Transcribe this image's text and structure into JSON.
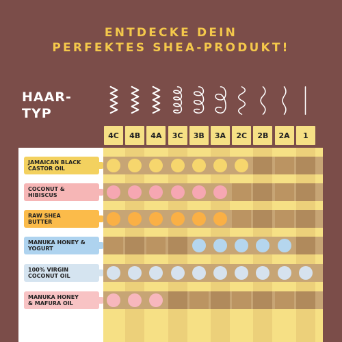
{
  "title": {
    "line1": "ENTDECKE DEIN",
    "line2": "PERFEKTES SHEA-PRODUKT!"
  },
  "axis_label": {
    "line1": "HAAR-",
    "line2": "TYP"
  },
  "hair_types": [
    "4C",
    "4B",
    "4A",
    "3C",
    "3B",
    "3A",
    "2C",
    "2B",
    "2A",
    "1"
  ],
  "colors": {
    "background": "#7b4d49",
    "title": "#f4c84b",
    "header_bg": "#f6e085"
  },
  "products": [
    {
      "line1": "JAMAICAN BLACK",
      "line2": "CASTOR OIL",
      "color": "#f3d15f",
      "dot": "#f6d66d",
      "suitable": [
        1,
        1,
        1,
        1,
        1,
        1,
        1,
        0,
        0,
        0
      ]
    },
    {
      "line1": "COCONUT &",
      "line2": "HIBISCUS",
      "color": "#f6b6b6",
      "dot": "#f6a7b2",
      "suitable": [
        1,
        1,
        1,
        1,
        1,
        1,
        0,
        0,
        0,
        0
      ]
    },
    {
      "line1": "RAW SHEA",
      "line2": "BUTTER",
      "color": "#fbbb4a",
      "dot": "#fab045",
      "suitable": [
        1,
        1,
        1,
        1,
        1,
        1,
        0,
        0,
        0,
        0
      ]
    },
    {
      "line1": "MANUKA HONEY &",
      "line2": "YOGURT",
      "color": "#aed3ef",
      "dot": "#b5d6ee",
      "suitable": [
        0,
        0,
        0,
        0,
        1,
        1,
        1,
        1,
        1,
        0
      ]
    },
    {
      "line1": "100% VIRGIN",
      "line2": "COCONUT OIL",
      "color": "#d5e4f0",
      "dot": "#d6e2ee",
      "suitable": [
        1,
        1,
        1,
        1,
        1,
        1,
        1,
        1,
        1,
        1
      ]
    },
    {
      "line1": "MANUKA HONEY",
      "line2": "& MAFURA OIL",
      "color": "#f8c3c4",
      "dot": "#f7b7bd",
      "suitable": [
        1,
        1,
        1,
        0,
        0,
        0,
        0,
        0,
        0,
        0
      ]
    }
  ]
}
